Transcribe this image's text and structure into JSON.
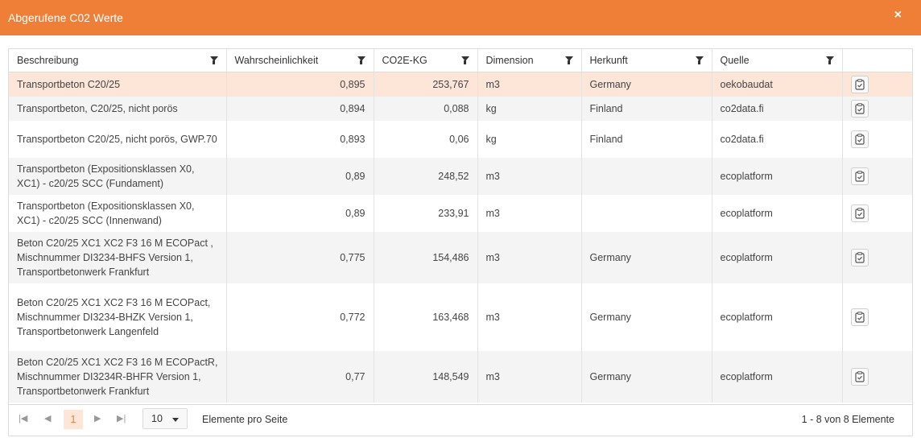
{
  "dialog": {
    "title": "Abgerufene C02 Werte",
    "close": "×"
  },
  "columns": [
    {
      "label": "Beschreibung"
    },
    {
      "label": "Wahrscheinlichkeit"
    },
    {
      "label": "CO2E-KG"
    },
    {
      "label": "Dimension"
    },
    {
      "label": "Herkunft"
    },
    {
      "label": "Quelle"
    }
  ],
  "rows": [
    {
      "desc": "Transportbeton C20/25",
      "prob": "0,895",
      "co2": "253,767",
      "dim": "m3",
      "origin": "Germany",
      "source": "oekobaudat"
    },
    {
      "desc": "Transportbeton, C20/25, nicht porös",
      "prob": "0,894",
      "co2": "0,088",
      "dim": "kg",
      "origin": "Finland",
      "source": "co2data.fi"
    },
    {
      "desc": "Transportbeton C20/25, nicht porös, GWP.70",
      "prob": "0,893",
      "co2": "0,06",
      "dim": "kg",
      "origin": "Finland",
      "source": "co2data.fi"
    },
    {
      "desc": "Transportbeton (Expositionsklassen X0, XC1) - c20/25 SCC (Fundament)",
      "prob": "0,89",
      "co2": "248,52",
      "dim": "m3",
      "origin": "",
      "source": "ecoplatform"
    },
    {
      "desc": "Transportbeton (Expositionsklassen X0, XC1) - c20/25 SCC (Innenwand)",
      "prob": "0,89",
      "co2": "233,91",
      "dim": "m3",
      "origin": "",
      "source": "ecoplatform"
    },
    {
      "desc": "Beton C20/25 XC1 XC2 F3 16 M ECOPact , Mischnummer DI3234-BHFS Version 1, Transportbetonwerk Frankfurt",
      "prob": "0,775",
      "co2": "154,486",
      "dim": "m3",
      "origin": "Germany",
      "source": "ecoplatform"
    },
    {
      "desc": "Beton C20/25 XC1 XC2 F3 16 M ECOPact, Mischnummer DI3234-BHZK Version 1, Transportbetonwerk Langenfeld",
      "prob": "0,772",
      "co2": "163,468",
      "dim": "m3",
      "origin": "Germany",
      "source": "ecoplatform"
    },
    {
      "desc": "Beton C20/25 XC1 XC2 F3 16 M ECOPactR, Mischnummer DI3234R-BHFR Version 1, Transportbetonwerk Frankfurt",
      "prob": "0,77",
      "co2": "148,549",
      "dim": "m3",
      "origin": "Germany",
      "source": "ecoplatform"
    }
  ],
  "pager": {
    "first_icon": "first-page-icon",
    "prev_icon": "prev-page-icon",
    "next_icon": "next-page-icon",
    "last_icon": "last-page-icon",
    "current_page": "1",
    "page_size": "10",
    "page_size_label": "Elemente pro Seite",
    "info": "1 - 8 von 8 Elemente"
  },
  "colors": {
    "accent": "#ef7f36",
    "selected_row": "#fde5d7",
    "alt_row": "#f4f4f4"
  }
}
